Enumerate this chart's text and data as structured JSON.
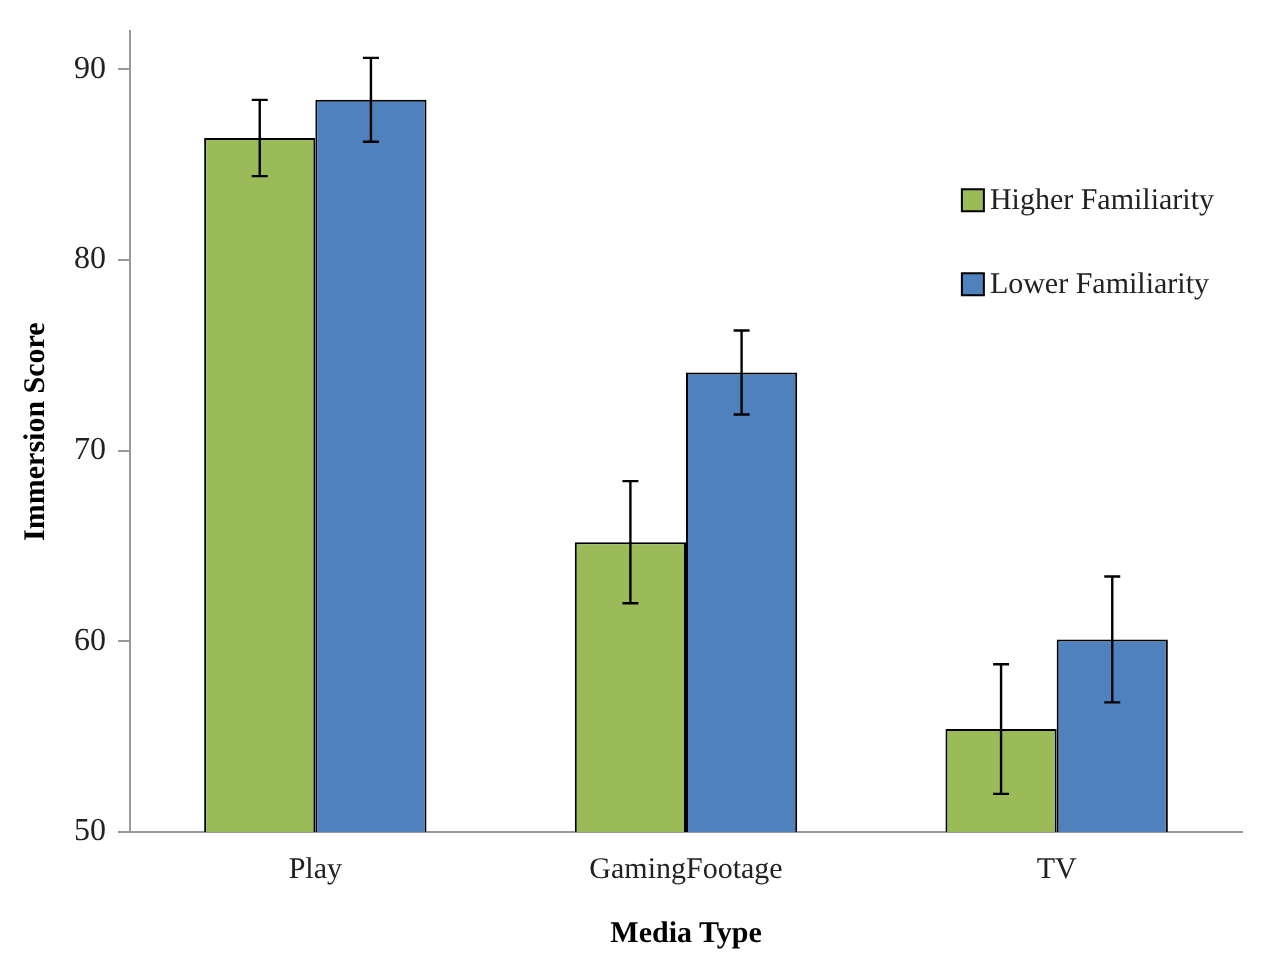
{
  "chart_data": {
    "type": "bar",
    "xlabel": "Media Type",
    "ylabel": "Immersion Score",
    "categories": [
      "Play",
      "GamingFootage",
      "TV"
    ],
    "series": [
      {
        "name": "Higher Familiarity",
        "color": "#9bbb59",
        "values": [
          86.4,
          65.2,
          55.4
        ],
        "errors": [
          2.0,
          3.2,
          3.4
        ]
      },
      {
        "name": "Lower Familiarity",
        "color": "#4f81bd",
        "values": [
          88.4,
          74.1,
          60.1
        ],
        "errors": [
          2.2,
          2.2,
          3.3
        ]
      }
    ],
    "ylim": [
      50,
      92
    ],
    "yticks": [
      50,
      60,
      70,
      80,
      90
    ],
    "grid": false,
    "legend": "right"
  }
}
